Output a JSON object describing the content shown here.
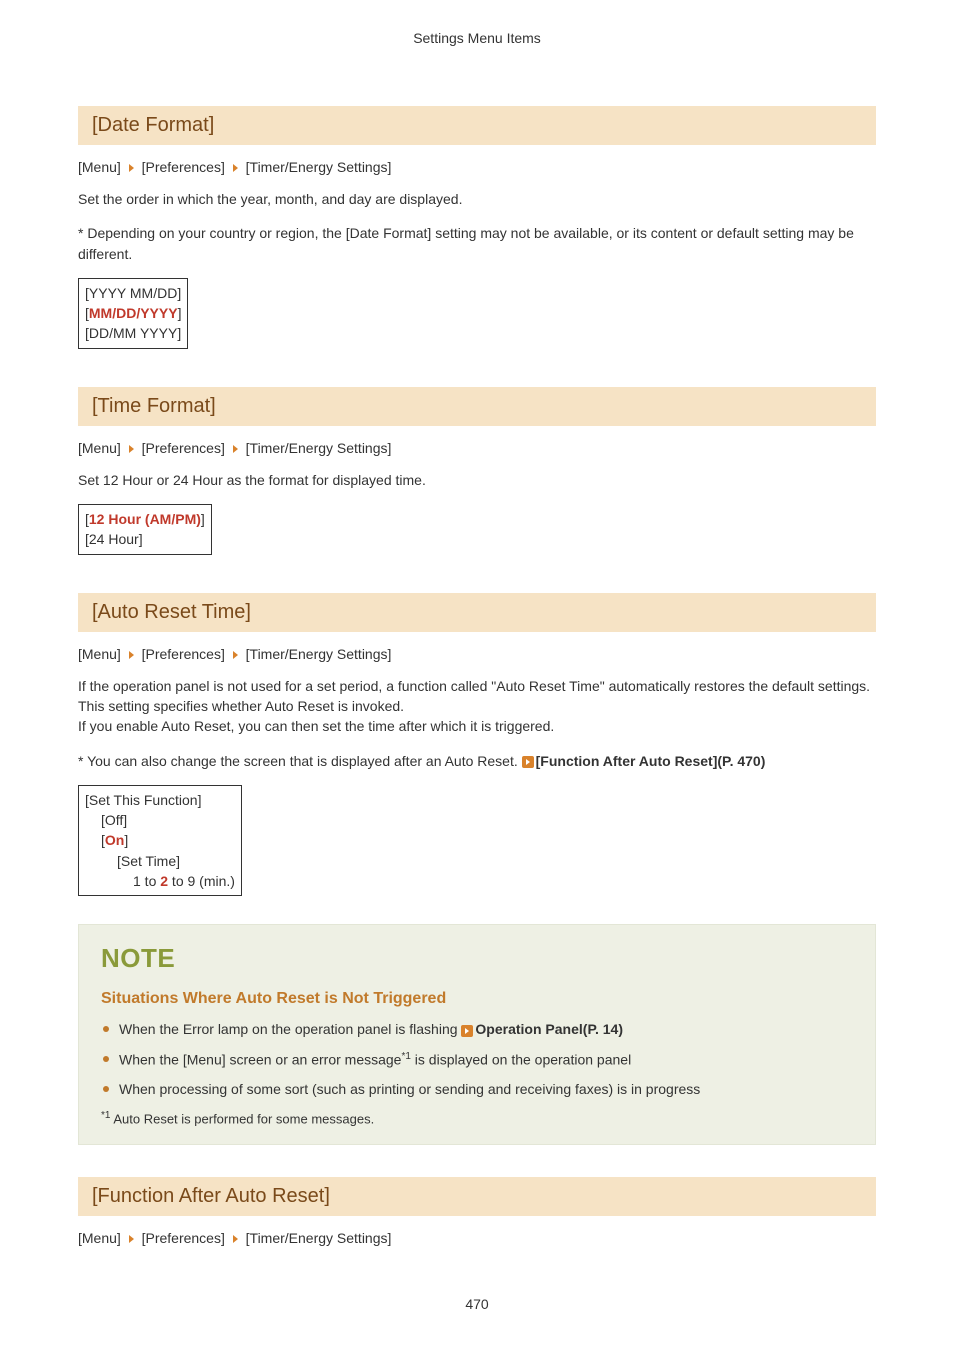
{
  "header": "Settings Menu Items",
  "breadcrumb": [
    "[Menu]",
    "[Preferences]",
    "[Timer/Energy Settings]"
  ],
  "sections": {
    "dateFormat": {
      "title": "[Date Format]",
      "p1": "Set the order in which the year, month, and day are displayed.",
      "p2": "* Depending on your country or region, the [Date Format] setting may not be available, or its content or default setting may be different.",
      "opts": {
        "o1": "[YYYY MM/DD]",
        "o2_l": "[",
        "o2_v": "MM/DD/YYYY",
        "o2_r": "]",
        "o3": "[DD/MM YYYY]"
      }
    },
    "timeFormat": {
      "title": "[Time Format]",
      "p1": "Set 12 Hour or 24 Hour as the format for displayed time.",
      "opts": {
        "o1_l": "[",
        "o1_v": "12 Hour (AM/PM)",
        "o1_r": "]",
        "o2": "[24 Hour]"
      }
    },
    "autoReset": {
      "title": "[Auto Reset Time]",
      "p1": "If the operation panel is not used for a set period, a function called \"Auto Reset Time\" automatically restores the default settings. This setting specifies whether Auto Reset is invoked.",
      "p1b": "If you enable Auto Reset, you can then set the time after which it is triggered.",
      "p2_pre": "* You can also change the screen that is displayed after an Auto Reset. ",
      "p2_link": "[Function After Auto Reset](P. 470)",
      "opts": {
        "l1": "[Set This Function]",
        "l2": "[Off]",
        "l3_l": "[",
        "l3_v": "On",
        "l3_r": "]",
        "l4": "[Set Time]",
        "l5_a": "1 to ",
        "l5_v": "2",
        "l5_b": " to 9 (min.)"
      }
    },
    "note": {
      "title": "NOTE",
      "subtitle": "Situations Where Auto Reset is Not Triggered",
      "b1_pre": "When the Error lamp on the operation panel is flashing ",
      "b1_link": "Operation Panel(P. 14)",
      "b2_a": "When the [Menu] screen or an error message",
      "b2_sup": "*1",
      "b2_b": " is displayed on the operation panel",
      "b3": "When processing of some sort (such as printing or sending and receiving faxes) is in progress",
      "fn_sup": "*1",
      "fn": " Auto Reset is performed for some messages."
    },
    "funcAfter": {
      "title": "[Function After Auto Reset]"
    }
  },
  "pageNumber": "470"
}
